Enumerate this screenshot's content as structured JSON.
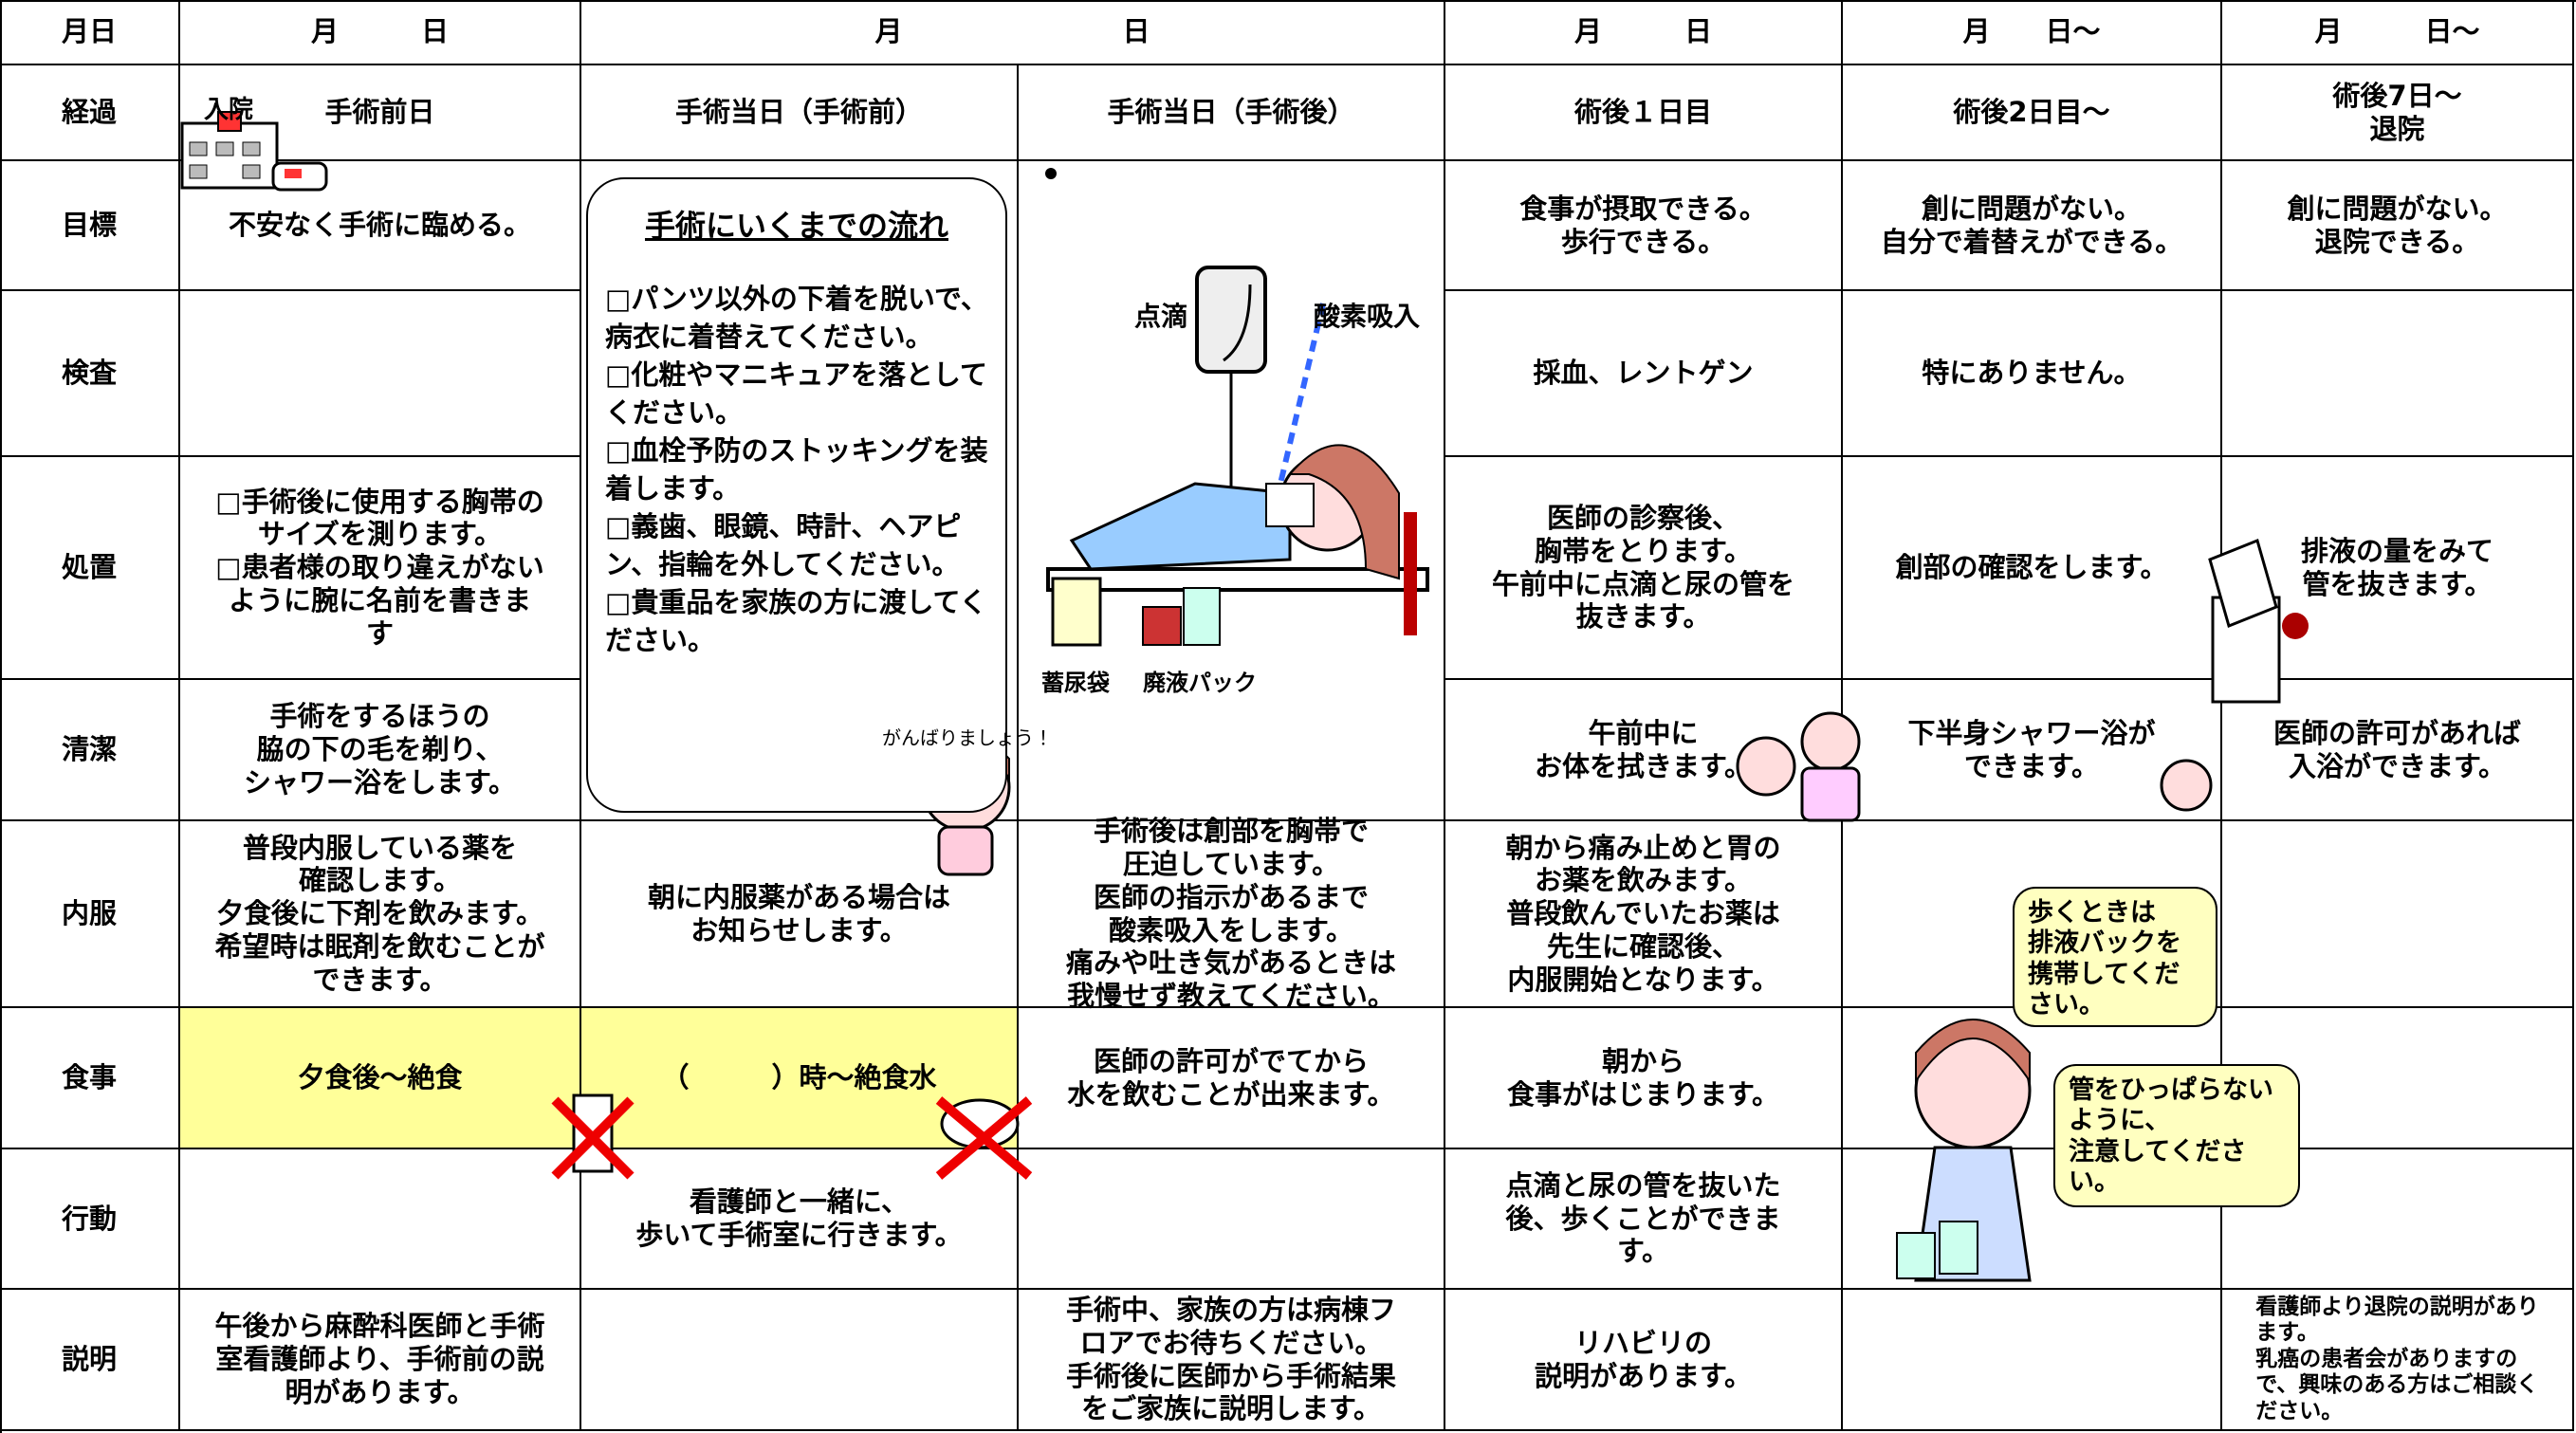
{
  "header": {
    "label": "月日",
    "dates": [
      "月　　　日",
      "月　　　　　　　　日",
      "月　　　日",
      "月　　日～",
      "月　　　日～"
    ]
  },
  "admission_icon_label": "入院",
  "rows": [
    {
      "label": "経過",
      "cells": [
        "手術前日",
        "手術当日（手術前）",
        "手術当日（手術後）",
        "術後１日目",
        "術後2日目～",
        "術後7日～\n退院"
      ]
    },
    {
      "label": "目標",
      "cells": [
        "不安なく手術に臨める。",
        null,
        null,
        "食事が摂取できる。\n歩行できる。",
        "創に問題がない。\n自分で着替えができる。",
        "創に問題がない。\n退院できる。"
      ]
    },
    {
      "label": "検査",
      "cells": [
        null,
        null,
        null,
        "採血、レントゲン",
        "特にありません。",
        null
      ]
    },
    {
      "label": "処置",
      "cells": [
        "□手術後に使用する胸帯の\nサイズを測ります。\n□患者様の取り違えがない\nように腕に名前を書きま\nす",
        null,
        null,
        "医師の診察後、\n胸帯をとります。\n午前中に点滴と尿の管を\n抜きます。",
        "創部の確認をします。",
        "排液の量をみて\n管を抜きます。"
      ]
    },
    {
      "label": "清潔",
      "cells": [
        "手術をするほうの\n脇の下の毛を剃り、\nシャワー浴をします。",
        null,
        null,
        "午前中に\nお体を拭きます。",
        "下半身シャワー浴が\nできます。",
        "医師の許可があれば\n入浴ができます。"
      ]
    },
    {
      "label": "内服",
      "cells": [
        "普段内服している薬を\n確認します。\n夕食後に下剤を飲みます。\n希望時は眠剤を飲むことが\nできます。",
        "朝に内服薬がある場合は\nお知らせします。",
        "手術後は創部を胸帯で\n圧迫しています。\n医師の指示があるまで\n酸素吸入をします。\n痛みや吐き気があるときは\n我慢せず教えてください。",
        "朝から痛み止めと胃の\nお薬を飲みます。\n普段飲んでいたお薬は\n先生に確認後、\n内服開始となります。",
        null,
        null
      ]
    },
    {
      "label": "食事",
      "cells": [
        "夕食後～絶食",
        "（　　　）時～絶食水",
        "医師の許可がでてから\n水を飲むことが出来ます。",
        "朝から\n食事がはじまります。",
        null,
        null
      ]
    },
    {
      "label": "行動",
      "cells": [
        null,
        "看護師と一緒に、\n歩いて手術室に行きます。",
        null,
        "点滴と尿の管を抜いた\n後、歩くことができま\nす。",
        null,
        null
      ]
    },
    {
      "label": "説明",
      "cells": [
        "午後から麻酔科医師と手術\n室看護師より、手術前の説\n明があります。",
        null,
        "手術中、家族の方は病棟フ\nロアでお待ちください。\n手術後に医師から手術結果\nをご家族に説明します。",
        "リハビリの\n説明があります。",
        null,
        "看護師より退院の説明があり\nます。\n乳癌の患者会がありますの\nで、興味のある方はご相談く\nださい。"
      ]
    }
  ],
  "flow_box": {
    "title": "手術にいくまでの流れ",
    "items": [
      "□パンツ以外の下着を脱いで、病衣に着替えてください。",
      "□化粧やマニキュアを落としてください。",
      "□血栓予防のストッキングを装着します。",
      "□義歯、眼鏡、時計、ヘアピン、指輪を外してください。",
      "□貴重品を家族の方に渡してください。"
    ]
  },
  "illustration_labels": {
    "drip": "点滴",
    "oxygen": "酸素吸入",
    "urine_bag": "蓄尿袋",
    "drain_pack": "廃液パック",
    "cheer": "がんばりましょう！"
  },
  "speech_bubbles": [
    "歩くときは\n排液バックを\n携帯してくだ\nさい。",
    "管をひっぱらない\nように、\n注意してください。"
  ]
}
